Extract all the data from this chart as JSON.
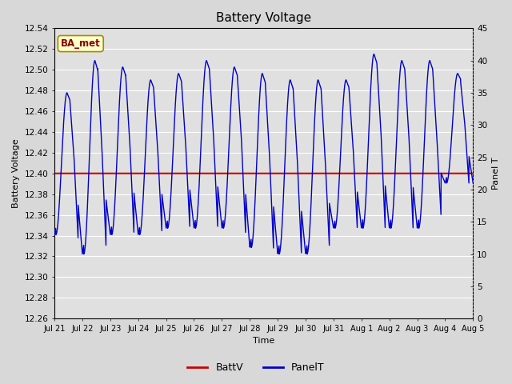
{
  "title": "Battery Voltage",
  "xlabel": "Time",
  "ylabel_left": "Battery Voltage",
  "ylabel_right": "Panel T",
  "annotation_text": "BA_met",
  "ylim_left": [
    12.26,
    12.54
  ],
  "ylim_right": [
    0,
    45
  ],
  "yticks_left": [
    12.26,
    12.28,
    12.3,
    12.32,
    12.34,
    12.36,
    12.38,
    12.4,
    12.42,
    12.44,
    12.46,
    12.48,
    12.5,
    12.52,
    12.54
  ],
  "yticks_right": [
    0,
    5,
    10,
    15,
    20,
    25,
    30,
    35,
    40,
    45
  ],
  "batt_v_value": 12.4,
  "panel_t_color": "#0000cc",
  "batt_v_color": "#cc0000",
  "fig_bg_color": "#d8d8d8",
  "plot_bg_color": "#e0e0e0",
  "legend_batt": "BattV",
  "legend_panel": "PanelT",
  "x_tick_labels": [
    "Jul 21",
    "Jul 22",
    "Jul 23",
    "Jul 24",
    "Jul 25",
    "Jul 26",
    "Jul 27",
    "Jul 28",
    "Jul 29",
    "Jul 30",
    "Jul 31",
    "Aug 1",
    "Aug 2",
    "Aug 3",
    "Aug 4",
    "Aug 5"
  ],
  "day_peaks": [
    35,
    40,
    39,
    37,
    38,
    40,
    39,
    38,
    37,
    37,
    37,
    41,
    40,
    40,
    38,
    27
  ],
  "day_mins": [
    13,
    10,
    13,
    13,
    14,
    14,
    14,
    11,
    10,
    10,
    14,
    14,
    14,
    14,
    21,
    22
  ]
}
